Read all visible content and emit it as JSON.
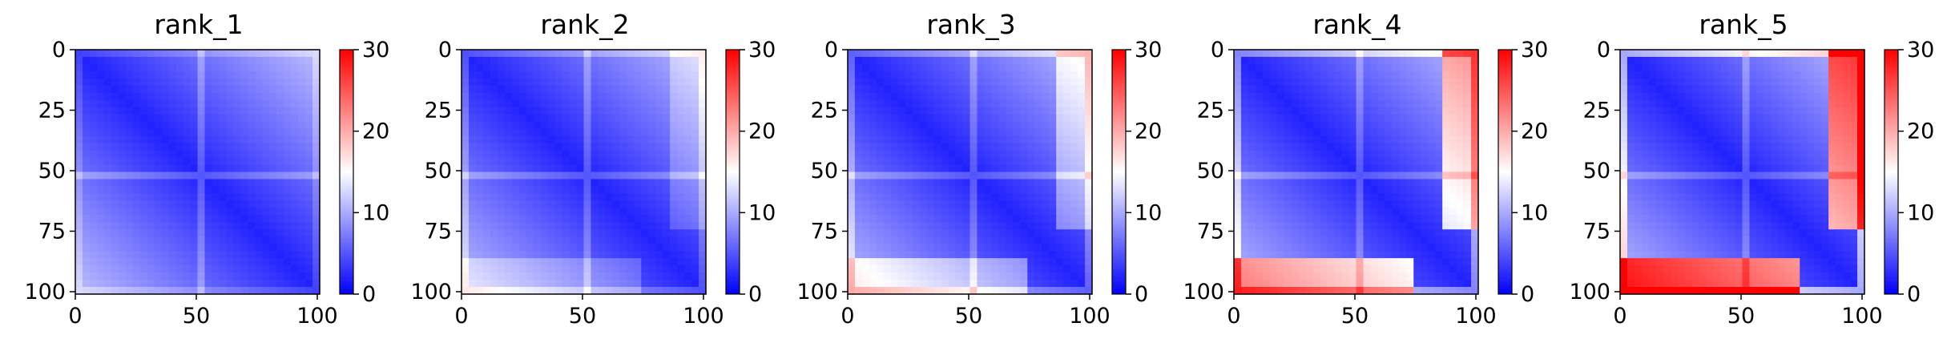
{
  "chart_data": [
    {
      "type": "heatmap",
      "title": "rank_1",
      "x_ticks": [
        "0",
        "50",
        "100"
      ],
      "y_ticks": [
        "0",
        "25",
        "50",
        "75",
        "100"
      ],
      "colorbar_ticks": [
        "0",
        "10",
        "20",
        "30"
      ],
      "colorbar_range": [
        0,
        30
      ],
      "colormap": "bwr",
      "matrix_size": 102,
      "corner_red_strength": 0.0
    },
    {
      "type": "heatmap",
      "title": "rank_2",
      "x_ticks": [
        "0",
        "50",
        "100"
      ],
      "y_ticks": [
        "0",
        "25",
        "50",
        "75",
        "100"
      ],
      "colorbar_ticks": [
        "0",
        "10",
        "20",
        "30"
      ],
      "colorbar_range": [
        0,
        30
      ],
      "colormap": "bwr",
      "matrix_size": 102,
      "corner_red_strength": 0.15
    },
    {
      "type": "heatmap",
      "title": "rank_3",
      "x_ticks": [
        "0",
        "50",
        "100"
      ],
      "y_ticks": [
        "0",
        "25",
        "50",
        "75",
        "100"
      ],
      "colorbar_ticks": [
        "0",
        "10",
        "20",
        "30"
      ],
      "colorbar_range": [
        0,
        30
      ],
      "colormap": "bwr",
      "matrix_size": 102,
      "corner_red_strength": 0.3
    },
    {
      "type": "heatmap",
      "title": "rank_4",
      "x_ticks": [
        "0",
        "50",
        "100"
      ],
      "y_ticks": [
        "0",
        "25",
        "50",
        "75",
        "100"
      ],
      "colorbar_ticks": [
        "0",
        "10",
        "20",
        "30"
      ],
      "colorbar_range": [
        0,
        30
      ],
      "colormap": "bwr",
      "matrix_size": 102,
      "corner_red_strength": 0.65
    },
    {
      "type": "heatmap",
      "title": "rank_5",
      "x_ticks": [
        "0",
        "50",
        "100"
      ],
      "y_ticks": [
        "0",
        "25",
        "50",
        "75",
        "100"
      ],
      "colorbar_ticks": [
        "0",
        "10",
        "20",
        "30"
      ],
      "colorbar_range": [
        0,
        30
      ],
      "colormap": "bwr",
      "matrix_size": 102,
      "corner_red_strength": 1.0
    }
  ],
  "colors": {
    "low": "#0000ff",
    "mid": "#ffffff",
    "high": "#ff0000",
    "axis": "#000000"
  }
}
